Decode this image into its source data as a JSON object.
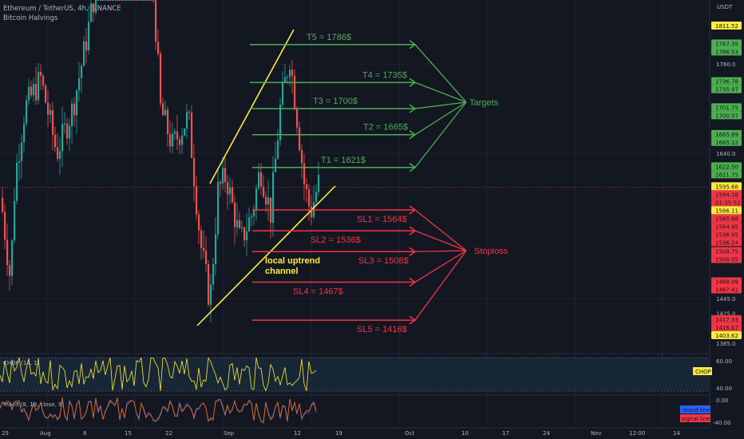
{
  "header": {
    "title": "Ethereum / TetherUS, 4h, BINANCE",
    "indicator": "Bitcoin Halvings"
  },
  "price_axis_unit": "USDT",
  "colors": {
    "background": "#131722",
    "bull": "#26a69a",
    "bear": "#ef5350",
    "target": "#4caf50",
    "stop": "#f23645",
    "trend": "#ffeb3b",
    "axis_bg": "#131722"
  },
  "chart_data": {
    "type": "candlestick",
    "title": "Ethereum / TetherUS, 4h, BINANCE",
    "y_axis_ticks": [
      1760.0,
      1640.0,
      1445.0,
      1425.0,
      1385.0
    ],
    "x_axis_ticks": [
      "25",
      "Aug",
      "8",
      "15",
      "22",
      "Sep",
      "12",
      "19",
      "Oct",
      "10",
      "17",
      "24",
      "Nov",
      "12:00",
      "14"
    ],
    "ylim": [
      1385,
      1820
    ],
    "price_levels": [
      {
        "kind": "target",
        "label": "T5 = 1786$",
        "value": 1786
      },
      {
        "kind": "target",
        "label": "T4 = 1735$",
        "value": 1735
      },
      {
        "kind": "target",
        "label": "T3 = 1700$",
        "value": 1700
      },
      {
        "kind": "target",
        "label": "T2 = 1665$",
        "value": 1665
      },
      {
        "kind": "target",
        "label": "T1 = 1621$",
        "value": 1621
      },
      {
        "kind": "stop",
        "label": "SL1 = 1564$",
        "value": 1564
      },
      {
        "kind": "stop",
        "label": "SL2 = 1536$",
        "value": 1536
      },
      {
        "kind": "stop",
        "label": "SL3 = 1508$",
        "value": 1508
      },
      {
        "kind": "stop",
        "label": "SL4 = 1467$",
        "value": 1467
      },
      {
        "kind": "stop",
        "label": "SL5 = 1416$",
        "value": 1416
      }
    ],
    "group_labels": {
      "targets": "Targets",
      "stops": "Stoploss",
      "channel": "local uptrend\nchannel"
    },
    "price_tags": [
      {
        "value": 1811.52,
        "color": "#ffeb3b"
      },
      {
        "value": 1787.35,
        "color": "#4caf50"
      },
      {
        "value": 1786.53,
        "color": "#4caf50"
      },
      {
        "value": 1736.78,
        "color": "#4caf50"
      },
      {
        "value": 1735.97,
        "color": "#4caf50"
      },
      {
        "value": 1701.75,
        "color": "#4caf50"
      },
      {
        "value": 1700.97,
        "color": "#4caf50"
      },
      {
        "value": 1665.89,
        "color": "#4caf50"
      },
      {
        "value": 1665.12,
        "color": "#4caf50"
      },
      {
        "value": 1622.5,
        "color": "#4caf50"
      },
      {
        "value": 1621.75,
        "color": "#4caf50"
      },
      {
        "value": 1595.68,
        "color": "#ffeb3b"
      },
      {
        "value": 1594.28,
        "color": "#f23645",
        "sub": "01:35:52"
      },
      {
        "value": 1586.11,
        "color": "#ffeb3b"
      },
      {
        "value": 1565.68,
        "color": "#f23645"
      },
      {
        "value": 1564.95,
        "color": "#f23645"
      },
      {
        "value": 1536.95,
        "color": "#f23645"
      },
      {
        "value": 1536.24,
        "color": "#f23645"
      },
      {
        "value": 1508.75,
        "color": "#f23645"
      },
      {
        "value": 1508.05,
        "color": "#f23645"
      },
      {
        "value": 1468.09,
        "color": "#f23645"
      },
      {
        "value": 1467.41,
        "color": "#f23645"
      },
      {
        "value": 1417.33,
        "color": "#f23645"
      },
      {
        "value": 1416.67,
        "color": "#f23645"
      },
      {
        "value": 1403.62,
        "color": "#ffeb3b"
      }
    ],
    "chop": {
      "label": "CHOP (14, 1)",
      "levels": [
        60.0,
        40.0
      ],
      "tag": "CHOP"
    },
    "macd": {
      "label": "macd (8, 19, close, 9)",
      "levels": [
        "0.00",
        "-40.00"
      ],
      "legend": [
        "macd line",
        "signal line"
      ]
    }
  }
}
